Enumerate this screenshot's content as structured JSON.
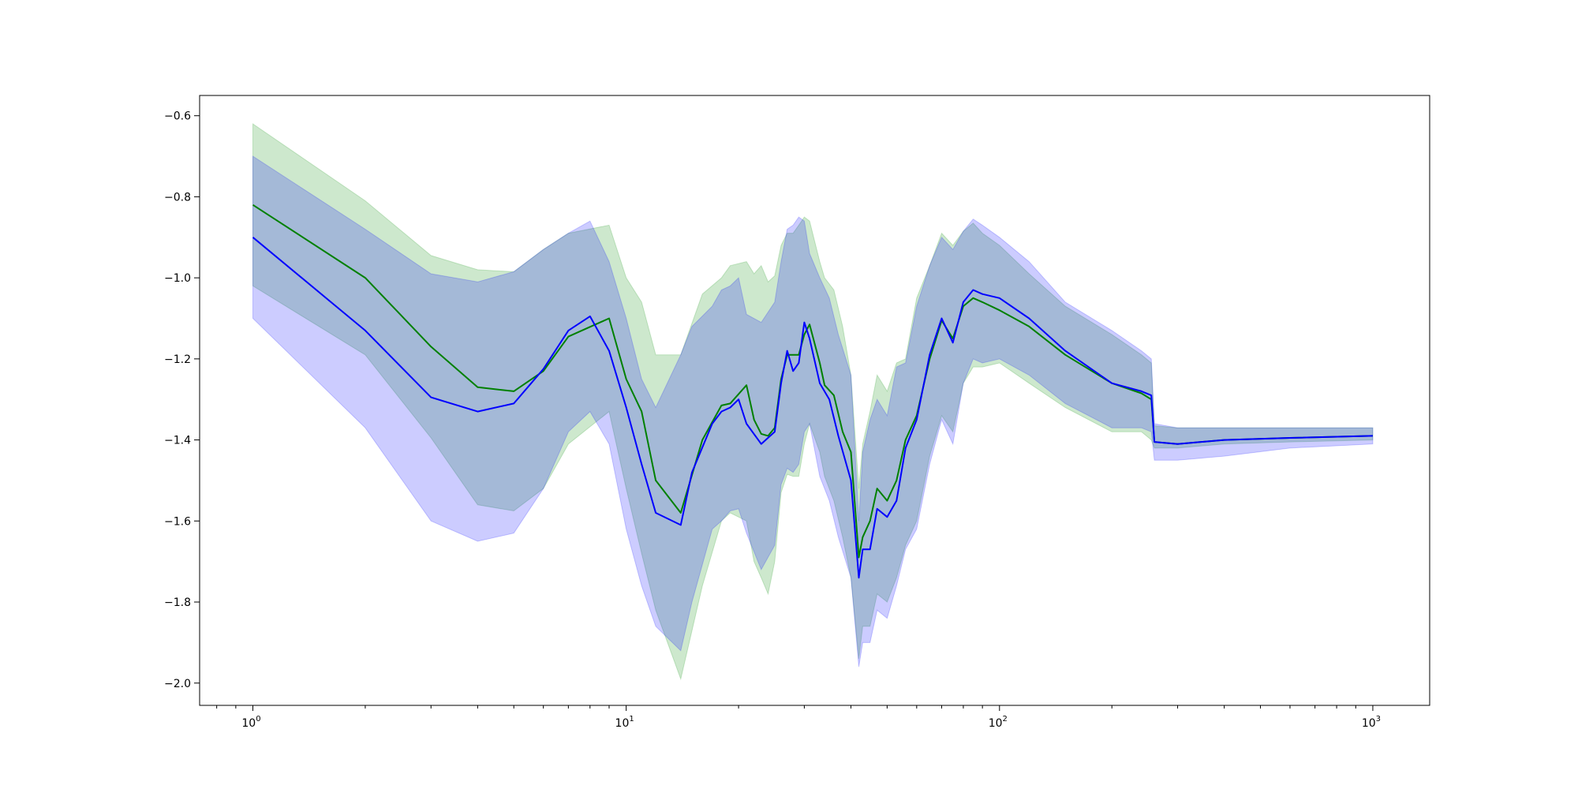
{
  "chart_data": {
    "type": "line",
    "title": "",
    "xlabel": "",
    "ylabel": "",
    "xscale": "log",
    "xlim": [
      0.72,
      1420
    ],
    "ylim": [
      -2.055,
      -0.55
    ],
    "grid": false,
    "legend": "none",
    "x_tick_values": [
      1,
      10,
      100,
      1000
    ],
    "x_tick_labels": [
      {
        "base": "10",
        "exp": "0"
      },
      {
        "base": "10",
        "exp": "1"
      },
      {
        "base": "10",
        "exp": "2"
      },
      {
        "base": "10",
        "exp": "3"
      }
    ],
    "y_ticks": [
      -0.6,
      -0.8,
      -1.0,
      -1.2,
      -1.4,
      -1.6,
      -1.8,
      -2.0
    ],
    "y_tick_labels": [
      "−0.6",
      "−0.8",
      "−1.0",
      "−1.2",
      "−1.4",
      "−1.6",
      "−1.8",
      "−2.0"
    ],
    "series": [
      {
        "color": "#008000",
        "band_color": "#2ca02c",
        "band_opacity": 0.24,
        "points": [
          [
            1,
            -0.82,
            -0.62,
            -1.02
          ],
          [
            2,
            -1.0,
            -0.81,
            -1.19
          ],
          [
            3,
            -1.17,
            -0.945,
            -1.395
          ],
          [
            4,
            -1.27,
            -0.98,
            -1.56
          ],
          [
            5,
            -1.28,
            -0.985,
            -1.575
          ],
          [
            6,
            -1.23,
            -0.93,
            -1.52
          ],
          [
            7,
            -1.145,
            -0.89,
            -1.41
          ],
          [
            9,
            -1.1,
            -0.87,
            -1.33
          ],
          [
            10,
            -1.25,
            -1.0,
            -1.52
          ],
          [
            11,
            -1.33,
            -1.06,
            -1.68
          ],
          [
            12,
            -1.5,
            -1.19,
            -1.82
          ],
          [
            14,
            -1.58,
            -1.19,
            -1.99
          ],
          [
            16,
            -1.4,
            -1.04,
            -1.76
          ],
          [
            18,
            -1.315,
            -1.0,
            -1.6
          ],
          [
            19,
            -1.31,
            -0.97,
            -1.58
          ],
          [
            21,
            -1.265,
            -0.96,
            -1.6
          ],
          [
            22,
            -1.35,
            -0.99,
            -1.7
          ],
          [
            23,
            -1.385,
            -0.97,
            -1.74
          ],
          [
            24,
            -1.39,
            -1.01,
            -1.78
          ],
          [
            25,
            -1.37,
            -0.995,
            -1.7
          ],
          [
            26,
            -1.25,
            -0.92,
            -1.53
          ],
          [
            27,
            -1.19,
            -0.89,
            -1.485
          ],
          [
            28,
            -1.19,
            -0.89,
            -1.49
          ],
          [
            29,
            -1.19,
            -0.87,
            -1.49
          ],
          [
            30,
            -1.14,
            -0.85,
            -1.41
          ],
          [
            31,
            -1.115,
            -0.86,
            -1.36
          ],
          [
            33,
            -1.21,
            -0.96,
            -1.43
          ],
          [
            34,
            -1.265,
            -1.0,
            -1.49
          ],
          [
            36,
            -1.29,
            -1.03,
            -1.55
          ],
          [
            38,
            -1.38,
            -1.12,
            -1.64
          ],
          [
            40,
            -1.43,
            -1.24,
            -1.74
          ],
          [
            42,
            -1.69,
            -1.52,
            -1.94
          ],
          [
            43,
            -1.64,
            -1.41,
            -1.86
          ],
          [
            45,
            -1.6,
            -1.33,
            -1.86
          ],
          [
            47,
            -1.52,
            -1.24,
            -1.78
          ],
          [
            50,
            -1.55,
            -1.28,
            -1.8
          ],
          [
            53,
            -1.5,
            -1.21,
            -1.74
          ],
          [
            56,
            -1.4,
            -1.2,
            -1.66
          ],
          [
            60,
            -1.34,
            -1.05,
            -1.6
          ],
          [
            65,
            -1.2,
            -0.97,
            -1.44
          ],
          [
            70,
            -1.105,
            -0.89,
            -1.34
          ],
          [
            75,
            -1.15,
            -0.92,
            -1.38
          ],
          [
            80,
            -1.07,
            -0.885,
            -1.26
          ],
          [
            85,
            -1.05,
            -0.865,
            -1.22
          ],
          [
            90,
            -1.06,
            -0.89,
            -1.22
          ],
          [
            100,
            -1.08,
            -0.92,
            -1.21
          ],
          [
            120,
            -1.12,
            -0.99,
            -1.26
          ],
          [
            150,
            -1.19,
            -1.07,
            -1.32
          ],
          [
            200,
            -1.26,
            -1.14,
            -1.38
          ],
          [
            240,
            -1.285,
            -1.19,
            -1.38
          ],
          [
            255,
            -1.3,
            -1.21,
            -1.4
          ],
          [
            260,
            -1.405,
            -1.365,
            -1.42
          ],
          [
            300,
            -1.41,
            -1.37,
            -1.42
          ],
          [
            400,
            -1.4,
            -1.37,
            -1.41
          ],
          [
            600,
            -1.395,
            -1.37,
            -1.405
          ],
          [
            1000,
            -1.39,
            -1.37,
            -1.4
          ]
        ]
      },
      {
        "color": "#0000ff",
        "band_color": "#0000ff",
        "band_opacity": 0.2,
        "points": [
          [
            1,
            -0.9,
            -0.7,
            -1.1
          ],
          [
            2,
            -1.13,
            -0.88,
            -1.37
          ],
          [
            3,
            -1.295,
            -0.99,
            -1.6
          ],
          [
            4,
            -1.33,
            -1.01,
            -1.65
          ],
          [
            5,
            -1.31,
            -0.985,
            -1.63
          ],
          [
            6,
            -1.225,
            -0.93,
            -1.52
          ],
          [
            7,
            -1.13,
            -0.89,
            -1.38
          ],
          [
            8,
            -1.095,
            -0.86,
            -1.33
          ],
          [
            9,
            -1.18,
            -0.96,
            -1.41
          ],
          [
            10,
            -1.32,
            -1.1,
            -1.62
          ],
          [
            11,
            -1.46,
            -1.25,
            -1.76
          ],
          [
            12,
            -1.58,
            -1.32,
            -1.86
          ],
          [
            14,
            -1.61,
            -1.19,
            -1.92
          ],
          [
            15,
            -1.48,
            -1.12,
            -1.8
          ],
          [
            17,
            -1.36,
            -1.07,
            -1.62
          ],
          [
            18,
            -1.33,
            -1.03,
            -1.6
          ],
          [
            19,
            -1.32,
            -1.02,
            -1.575
          ],
          [
            20,
            -1.3,
            -1.0,
            -1.57
          ],
          [
            21,
            -1.36,
            -1.09,
            -1.63
          ],
          [
            23,
            -1.41,
            -1.11,
            -1.72
          ],
          [
            25,
            -1.38,
            -1.06,
            -1.66
          ],
          [
            26,
            -1.26,
            -0.96,
            -1.51
          ],
          [
            27,
            -1.18,
            -0.88,
            -1.47
          ],
          [
            28,
            -1.23,
            -0.87,
            -1.48
          ],
          [
            29,
            -1.21,
            -0.85,
            -1.46
          ],
          [
            30,
            -1.11,
            -0.86,
            -1.38
          ],
          [
            31,
            -1.15,
            -0.94,
            -1.36
          ],
          [
            33,
            -1.26,
            -1.0,
            -1.49
          ],
          [
            35,
            -1.3,
            -1.05,
            -1.55
          ],
          [
            37,
            -1.39,
            -1.14,
            -1.64
          ],
          [
            40,
            -1.5,
            -1.24,
            -1.74
          ],
          [
            42,
            -1.74,
            -1.6,
            -1.96
          ],
          [
            43,
            -1.67,
            -1.43,
            -1.9
          ],
          [
            45,
            -1.67,
            -1.35,
            -1.9
          ],
          [
            47,
            -1.57,
            -1.3,
            -1.82
          ],
          [
            50,
            -1.59,
            -1.34,
            -1.84
          ],
          [
            53,
            -1.55,
            -1.22,
            -1.76
          ],
          [
            56,
            -1.42,
            -1.21,
            -1.67
          ],
          [
            60,
            -1.35,
            -1.07,
            -1.62
          ],
          [
            65,
            -1.19,
            -0.97,
            -1.46
          ],
          [
            70,
            -1.1,
            -0.9,
            -1.35
          ],
          [
            75,
            -1.16,
            -0.93,
            -1.41
          ],
          [
            80,
            -1.06,
            -0.885,
            -1.26
          ],
          [
            85,
            -1.03,
            -0.855,
            -1.2
          ],
          [
            90,
            -1.04,
            -0.87,
            -1.21
          ],
          [
            100,
            -1.05,
            -0.9,
            -1.2
          ],
          [
            120,
            -1.1,
            -0.96,
            -1.24
          ],
          [
            150,
            -1.18,
            -1.06,
            -1.31
          ],
          [
            200,
            -1.26,
            -1.13,
            -1.37
          ],
          [
            240,
            -1.28,
            -1.18,
            -1.37
          ],
          [
            255,
            -1.29,
            -1.2,
            -1.38
          ],
          [
            260,
            -1.405,
            -1.36,
            -1.45
          ],
          [
            300,
            -1.41,
            -1.37,
            -1.45
          ],
          [
            400,
            -1.4,
            -1.37,
            -1.44
          ],
          [
            600,
            -1.395,
            -1.37,
            -1.42
          ],
          [
            1000,
            -1.39,
            -1.37,
            -1.41
          ]
        ]
      }
    ]
  }
}
